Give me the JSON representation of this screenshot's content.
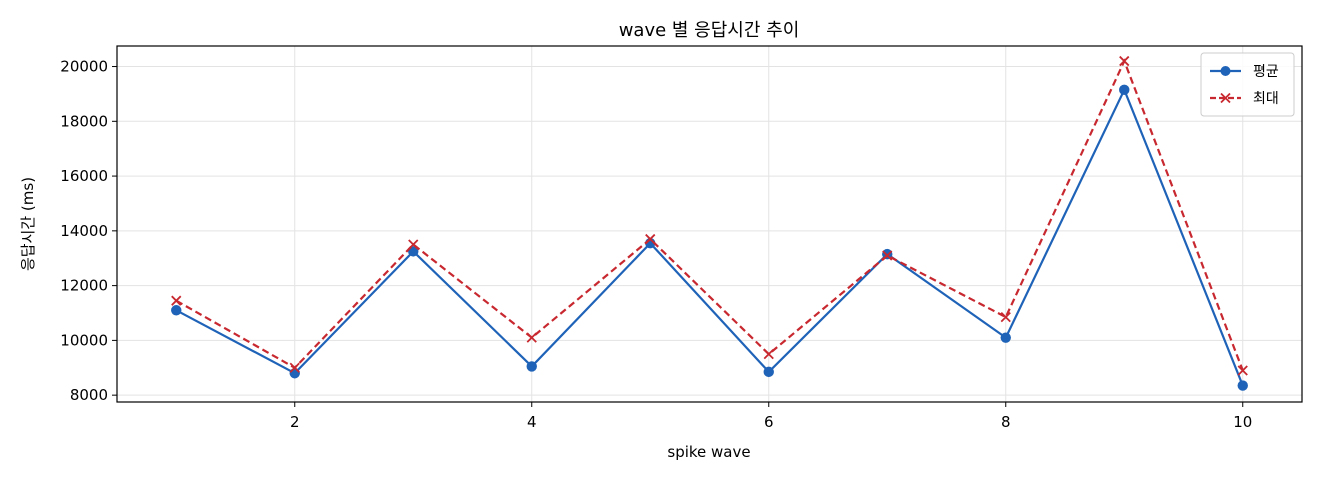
{
  "chart_data": {
    "type": "line",
    "title": "wave 별 응답시간 추이",
    "xlabel": "spike wave",
    "ylabel": "응답시간 (ms)",
    "x": [
      1,
      2,
      3,
      4,
      5,
      6,
      7,
      8,
      9,
      10
    ],
    "xlim": [
      0.5,
      10.5
    ],
    "ylim": [
      7750,
      20750
    ],
    "xticks": [
      2,
      4,
      6,
      8,
      10
    ],
    "yticks": [
      8000,
      10000,
      12000,
      14000,
      16000,
      18000,
      20000
    ],
    "grid": true,
    "legend_position": "top-right",
    "series": [
      {
        "name": "평균",
        "color": "#1f63b8",
        "line_style": "solid",
        "marker": "circle",
        "values": [
          11100,
          8800,
          13250,
          9050,
          13550,
          8850,
          13150,
          10100,
          19150,
          8350
        ]
      },
      {
        "name": "최대",
        "color": "#c8282f",
        "line_style": "dashed",
        "marker": "x",
        "values": [
          11450,
          9000,
          13500,
          10100,
          13700,
          9500,
          13100,
          10850,
          20200,
          8900
        ]
      }
    ]
  }
}
